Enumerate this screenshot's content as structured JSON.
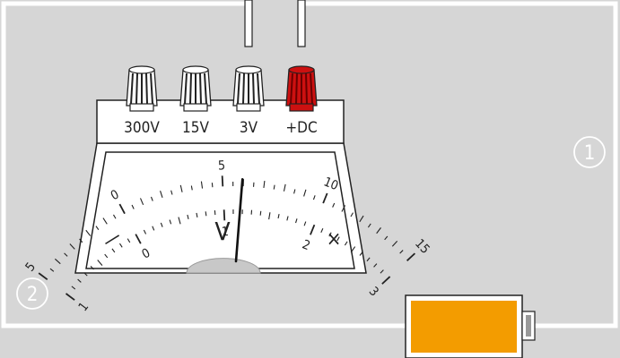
{
  "terminals": [
    {
      "label": "300V",
      "color": "#ffffff"
    },
    {
      "label": "15V",
      "color": "#ffffff"
    },
    {
      "label": "3V",
      "color": "#ffffff"
    },
    {
      "label": "+DC",
      "color": "#cc1010"
    }
  ],
  "scale_upper": {
    "labels": [
      "5",
      "0",
      "5",
      "10",
      "15"
    ],
    "range": [
      -5,
      15
    ]
  },
  "scale_lower": {
    "labels": [
      "1",
      "0",
      "1",
      "2",
      "3"
    ],
    "range": [
      -1,
      3
    ]
  },
  "unit_label": "V",
  "minus_symbol": "—",
  "times_symbol": "×",
  "needle_value_upper": 6.5,
  "markers": [
    "1",
    "2"
  ],
  "battery_color": "#f39c00",
  "background_color": "#d6d6d6"
}
